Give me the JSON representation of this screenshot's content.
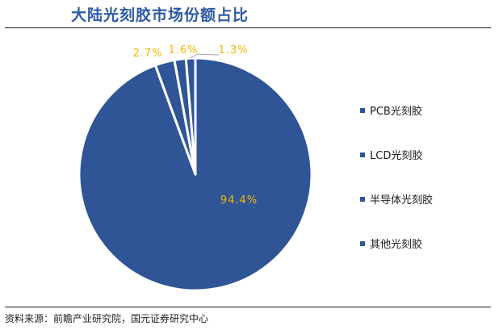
{
  "title": "大陆光刻胶市场份额占比",
  "source": "资料来源：前瞻产业研究院，国元证券研究中心",
  "colors": {
    "slice": "#2f5597",
    "slice_edge": "#ffffff",
    "label": "#f2b800",
    "leader": "#a6a6a6",
    "title": "#2e5aa3"
  },
  "chart_data": {
    "type": "pie",
    "title": "大陆光刻胶市场份额占比",
    "legend_position": "right",
    "slices": [
      {
        "name": "PCB光刻胶",
        "value": 94.4,
        "label": "94.4%"
      },
      {
        "name": "LCD光刻胶",
        "value": 2.7,
        "label": "2.7%"
      },
      {
        "name": "半导体光刻胶",
        "value": 1.6,
        "label": "1.6%"
      },
      {
        "name": "其他光刻胶",
        "value": 1.3,
        "label": "1.3%"
      }
    ]
  }
}
